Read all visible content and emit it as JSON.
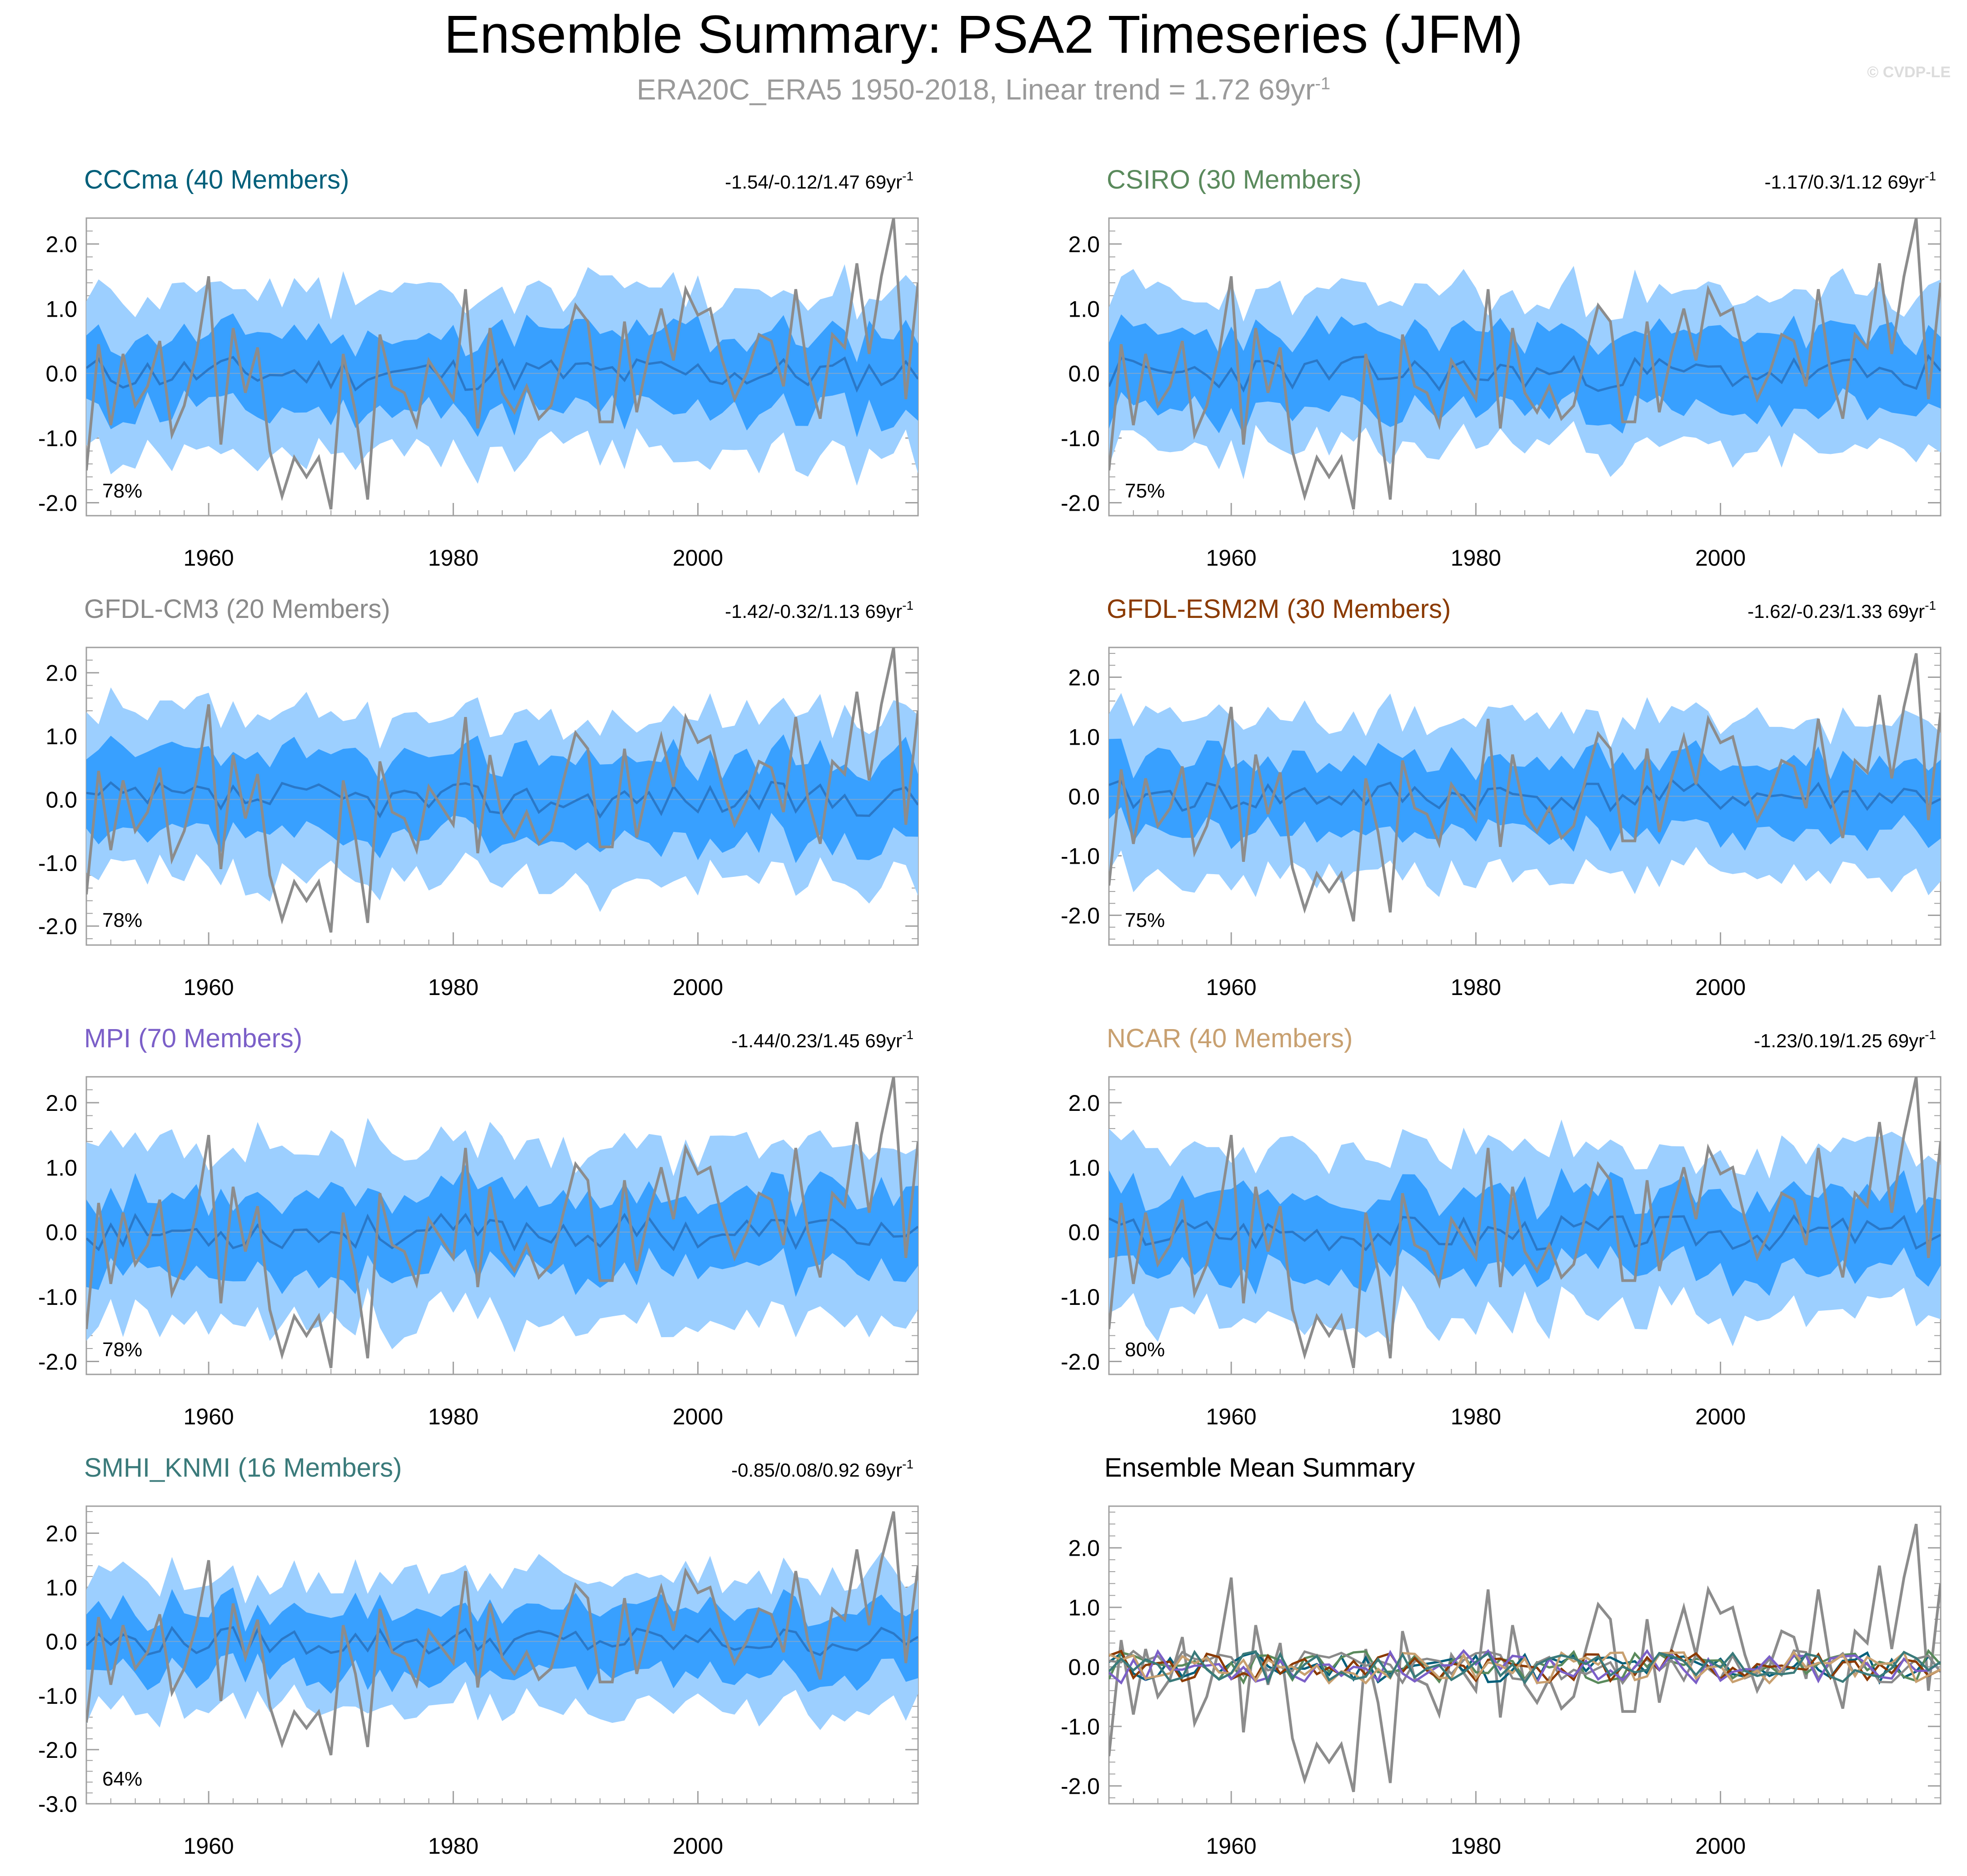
{
  "header": {
    "title": "Ensemble Summary: PSA2 Timeseries (JFM)",
    "subtitle_main": "ERA20C_ERA5 1950-2018, Linear trend = 1.72 69yr",
    "subtitle_exp": "-1",
    "copyright": "© CVDP-LE"
  },
  "chart_data": {
    "type": "line",
    "x_range": [
      1950,
      2018
    ],
    "x_ticks": [
      "1960",
      "1980",
      "2000"
    ],
    "x_tick_values": [
      1960,
      1980,
      2000
    ],
    "colors": {
      "band_outer": "#9ccfff",
      "band_inner": "#38a0ff",
      "ens_mean": "#2a78c8",
      "obs": "#8c8c8c"
    },
    "observations": {
      "name": "ERA20C_ERA5",
      "start_year": 1950,
      "values": [
        -1.5,
        0.45,
        -0.8,
        0.3,
        -0.5,
        -0.2,
        0.5,
        -0.95,
        -0.5,
        0.3,
        1.5,
        -1.1,
        0.7,
        -0.3,
        0.4,
        -1.2,
        -1.9,
        -1.3,
        -1.6,
        -1.3,
        -2.1,
        0.3,
        -0.6,
        -1.95,
        0.6,
        -0.2,
        -0.3,
        -0.8,
        0.2,
        -0.1,
        -0.4,
        1.3,
        -0.85,
        0.7,
        -0.3,
        -0.6,
        -0.2,
        -0.7,
        -0.5,
        0.3,
        1.05,
        0.8,
        -0.75,
        -0.75,
        0.8,
        -0.6,
        0.3,
        1.0,
        0.2,
        1.3,
        0.9,
        1.0,
        0.2,
        -0.4,
        0.0,
        0.6,
        0.5,
        -0.2,
        1.3,
        0.0,
        -0.7,
        0.6,
        0.4,
        1.7,
        0.3,
        1.5,
        2.4,
        -0.4,
        1.4
      ]
    },
    "panels": [
      {
        "label": "CCCma (40 Members)",
        "color": "#005f7a",
        "stats": "-1.54/-0.12/1.47 69yr",
        "stats_exp": "-1",
        "pct": "78%",
        "y_ticks": [
          "2.0",
          "1.0",
          "0.0",
          "-1.0",
          "-2.0"
        ],
        "ylim": [
          -2.2,
          2.4
        ],
        "mean_seed": 11,
        "outer_w": 1.25,
        "inner_w": 0.6
      },
      {
        "label": "CSIRO (30 Members)",
        "color": "#5a8a5c",
        "stats": "-1.17/0.3/1.12 69yr",
        "stats_exp": "-1",
        "pct": "75%",
        "y_ticks": [
          "2.0",
          "1.0",
          "0.0",
          "-1.0",
          "-2.0"
        ],
        "ylim": [
          -2.2,
          2.4
        ],
        "mean_seed": 23,
        "outer_w": 1.2,
        "inner_w": 0.6
      },
      {
        "label": "GFDL-CM3 (20 Members)",
        "color": "#8a8a8a",
        "stats": "-1.42/-0.32/1.13 69yr",
        "stats_exp": "-1",
        "pct": "78%",
        "y_ticks": [
          "2.0",
          "1.0",
          "0.0",
          "-1.0",
          "-2.0"
        ],
        "ylim": [
          -2.3,
          2.4
        ],
        "mean_seed": 37,
        "outer_w": 1.3,
        "inner_w": 0.65
      },
      {
        "label": "GFDL-ESM2M (30 Members)",
        "color": "#8b3a00",
        "stats": "-1.62/-0.23/1.33 69yr",
        "stats_exp": "-1",
        "pct": "75%",
        "y_ticks": [
          "2.0",
          "1.0",
          "0.0",
          "-1.0",
          "-2.0"
        ],
        "ylim": [
          -2.5,
          2.5
        ],
        "mean_seed": 41,
        "outer_w": 1.3,
        "inner_w": 0.6
      },
      {
        "label": "MPI (70 Members)",
        "color": "#7b5fc8",
        "stats": "-1.44/0.23/1.45 69yr",
        "stats_exp": "-1",
        "pct": "78%",
        "y_ticks": [
          "2.0",
          "1.0",
          "0.0",
          "-1.0",
          "-2.0"
        ],
        "ylim": [
          -2.2,
          2.4
        ],
        "mean_seed": 53,
        "outer_w": 1.35,
        "inner_w": 0.6
      },
      {
        "label": "NCAR (40 Members)",
        "color": "#c8a070",
        "stats": "-1.23/0.19/1.25 69yr",
        "stats_exp": "-1",
        "pct": "80%",
        "y_ticks": [
          "2.0",
          "1.0",
          "0.0",
          "-1.0",
          "-2.0"
        ],
        "ylim": [
          -2.2,
          2.4
        ],
        "mean_seed": 67,
        "outer_w": 1.3,
        "inner_w": 0.6
      },
      {
        "label": "SMHI_KNMI (16 Members)",
        "color": "#3a7a7a",
        "stats": "-0.85/0.08/0.92 69yr",
        "stats_exp": "-1",
        "pct": "64%",
        "y_ticks": [
          "2.0",
          "1.0",
          "0.0",
          "-1.0",
          "-2.0",
          "-3.0"
        ],
        "ylim": [
          -3.0,
          2.5
        ],
        "mean_seed": 79,
        "outer_w": 1.2,
        "inner_w": 0.6
      }
    ],
    "summary_panel": {
      "label": "Ensemble Mean Summary",
      "y_ticks": [
        "2.0",
        "1.0",
        "0.0",
        "-1.0",
        "-2.0"
      ],
      "ylim": [
        -2.3,
        2.7
      ]
    }
  }
}
